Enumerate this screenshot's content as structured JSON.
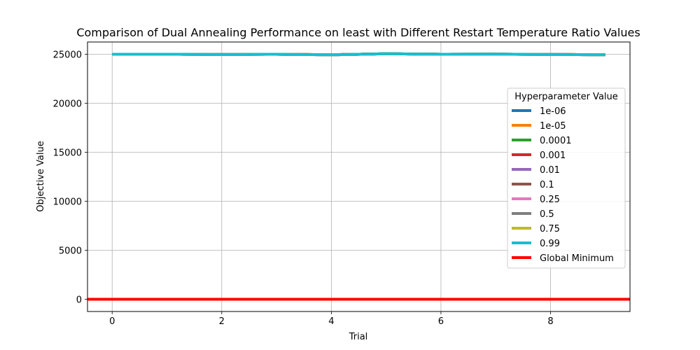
{
  "chart_data": {
    "type": "line",
    "title": "Comparison of Dual Annealing Performance on least with Different Restart Temperature Ratio Values",
    "xlabel": "Trial",
    "ylabel": "Objective Value",
    "xlim": [
      -0.45,
      9.45
    ],
    "ylim": [
      -1250,
      26250
    ],
    "xticks": [
      0,
      2,
      4,
      6,
      8
    ],
    "yticks": [
      0,
      5000,
      10000,
      15000,
      20000,
      25000
    ],
    "grid": true,
    "legend": {
      "title": "Hyperparameter Value",
      "placement": "right"
    },
    "x": [
      0,
      1,
      2,
      3,
      4,
      5,
      6,
      7,
      8,
      9
    ],
    "series": [
      {
        "name": "1e-06",
        "color": "#1f77b4",
        "values": [
          25000,
          25000,
          24980,
          25000,
          24950,
          25050,
          25000,
          25010,
          24980,
          24950
        ]
      },
      {
        "name": "1e-05",
        "color": "#ff7f0e",
        "values": [
          25000,
          25000,
          24980,
          25000,
          24950,
          25050,
          25000,
          25010,
          24980,
          24950
        ]
      },
      {
        "name": "0.0001",
        "color": "#2ca02c",
        "values": [
          25000,
          25000,
          24980,
          25000,
          24950,
          25050,
          25000,
          25010,
          24980,
          24950
        ]
      },
      {
        "name": "0.001",
        "color": "#d62728",
        "values": [
          25000,
          25000,
          24980,
          25000,
          24950,
          25050,
          25000,
          25010,
          24980,
          24950
        ]
      },
      {
        "name": "0.01",
        "color": "#9467bd",
        "values": [
          25000,
          25000,
          24980,
          25000,
          24950,
          25050,
          25000,
          25010,
          24980,
          24950
        ]
      },
      {
        "name": "0.1",
        "color": "#8c564b",
        "values": [
          25000,
          25000,
          24980,
          25000,
          24950,
          25050,
          25000,
          25010,
          24980,
          24950
        ]
      },
      {
        "name": "0.25",
        "color": "#e377c2",
        "values": [
          25000,
          25000,
          24980,
          25000,
          24950,
          25050,
          25000,
          25010,
          24980,
          24950
        ]
      },
      {
        "name": "0.5",
        "color": "#7f7f7f",
        "values": [
          25000,
          25000,
          24980,
          25000,
          24950,
          25050,
          25000,
          25010,
          24980,
          24950
        ]
      },
      {
        "name": "0.75",
        "color": "#bcbd22",
        "values": [
          25000,
          25000,
          24980,
          25000,
          24950,
          25050,
          25000,
          25010,
          24980,
          24950
        ]
      },
      {
        "name": "0.99",
        "color": "#17becf",
        "values": [
          25000,
          25000,
          24980,
          25000,
          24950,
          25050,
          25000,
          25010,
          24980,
          24950
        ]
      }
    ],
    "reference_lines": [
      {
        "name": "Global Minimum",
        "color": "#ff0000",
        "y": 0
      }
    ]
  }
}
